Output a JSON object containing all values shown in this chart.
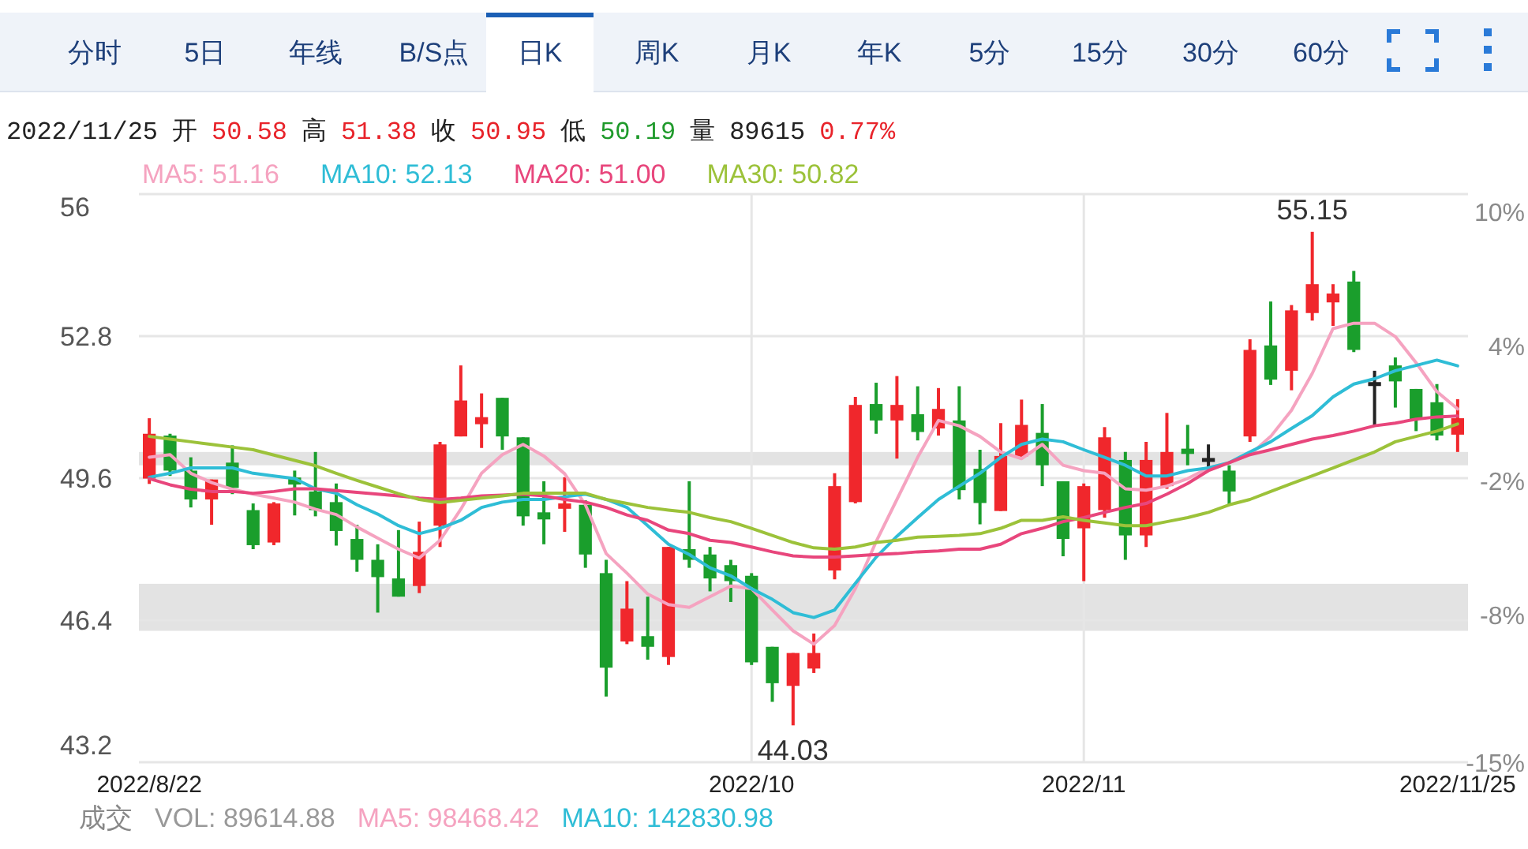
{
  "chart_data": {
    "type": "candlestick",
    "categories": [
      "2022/8/22",
      null,
      null,
      null,
      null,
      null,
      null,
      null,
      null,
      null,
      null,
      null,
      null,
      null,
      null,
      null,
      null,
      null,
      null,
      null,
      null,
      null,
      null,
      null,
      null,
      null,
      null,
      null,
      null,
      "2022/10",
      null,
      null,
      null,
      null,
      null,
      null,
      null,
      null,
      null,
      null,
      null,
      null,
      null,
      null,
      null,
      "2022/11",
      null,
      null,
      null,
      null,
      null,
      null,
      null,
      null,
      null,
      null,
      null,
      null,
      null,
      null,
      null,
      null,
      null,
      "2022/11/25"
    ],
    "ohlc": [
      [
        49.59,
        50.95,
        49.47,
        50.6
      ],
      [
        50.56,
        50.6,
        49.65,
        49.77
      ],
      [
        49.77,
        50.07,
        48.94,
        49.12
      ],
      [
        49.12,
        49.57,
        48.55,
        49.57
      ],
      [
        49.95,
        50.34,
        49.24,
        49.38
      ],
      [
        48.88,
        49.03,
        48.0,
        48.09
      ],
      [
        48.15,
        49.06,
        48.09,
        49.03
      ],
      [
        49.57,
        49.77,
        48.76,
        49.5
      ],
      [
        49.3,
        50.19,
        48.74,
        48.88
      ],
      [
        49.06,
        49.48,
        48.08,
        48.41
      ],
      [
        48.23,
        48.55,
        47.49,
        47.76
      ],
      [
        47.76,
        48.11,
        46.57,
        47.37
      ],
      [
        47.34,
        48.43,
        46.93,
        46.93
      ],
      [
        47.17,
        48.62,
        47.01,
        47.94
      ],
      [
        48.53,
        50.42,
        48.05,
        50.36
      ],
      [
        50.54,
        52.14,
        50.54,
        51.35
      ],
      [
        50.86,
        51.51,
        50.28,
        50.93
      ],
      [
        51.41,
        51.41,
        50.24,
        50.54
      ],
      [
        50.52,
        50.52,
        48.53,
        48.74
      ],
      [
        48.83,
        49.53,
        48.11,
        48.67
      ],
      [
        48.91,
        49.62,
        48.39,
        49.03
      ],
      [
        49.0,
        49.1,
        47.58,
        47.88
      ],
      [
        47.46,
        47.76,
        44.68,
        45.33
      ],
      [
        45.92,
        47.28,
        45.86,
        46.66
      ],
      [
        46.04,
        46.93,
        45.51,
        45.8
      ],
      [
        45.57,
        48.05,
        45.39,
        48.05
      ],
      [
        48.0,
        49.53,
        47.58,
        47.76
      ],
      [
        47.88,
        48.05,
        47.05,
        47.34
      ],
      [
        47.64,
        47.76,
        46.81,
        47.28
      ],
      [
        47.4,
        47.46,
        45.39,
        45.45
      ],
      [
        45.8,
        45.8,
        44.56,
        44.98
      ],
      [
        44.92,
        45.66,
        44.03,
        45.66
      ],
      [
        45.31,
        46.1,
        45.21,
        45.66
      ],
      [
        47.52,
        49.71,
        47.32,
        49.42
      ],
      [
        49.06,
        51.43,
        49.03,
        51.25
      ],
      [
        51.27,
        51.75,
        50.6,
        50.9
      ],
      [
        50.9,
        51.9,
        50.04,
        51.25
      ],
      [
        51.04,
        51.67,
        50.45,
        50.64
      ],
      [
        50.72,
        51.63,
        50.56,
        51.16
      ],
      [
        50.9,
        51.67,
        49.12,
        49.33
      ],
      [
        49.81,
        50.24,
        48.56,
        49.04
      ],
      [
        48.86,
        50.84,
        48.86,
        50.1
      ],
      [
        50.09,
        51.37,
        50.07,
        50.8
      ],
      [
        50.62,
        51.27,
        49.42,
        49.89
      ],
      [
        49.53,
        49.53,
        47.84,
        48.23
      ],
      [
        48.47,
        49.48,
        47.28,
        49.42
      ],
      [
        48.88,
        50.75,
        48.71,
        50.52
      ],
      [
        50.01,
        50.19,
        47.76,
        48.31
      ],
      [
        48.31,
        50.42,
        48.05,
        50.01
      ],
      [
        49.42,
        51.07,
        49.36,
        50.19
      ],
      [
        50.22,
        50.8,
        49.89,
        50.19
      ],
      [
        50.01,
        50.36,
        49.83,
        50.01
      ],
      [
        49.77,
        49.89,
        49.0,
        49.3
      ],
      [
        50.54,
        52.73,
        50.42,
        52.49
      ],
      [
        52.59,
        53.58,
        51.7,
        51.82
      ],
      [
        52.02,
        53.5,
        51.58,
        53.38
      ],
      [
        53.32,
        55.15,
        53.15,
        53.97
      ],
      [
        53.56,
        53.97,
        53.03,
        53.76
      ],
      [
        54.03,
        54.27,
        52.44,
        52.49
      ],
      [
        51.72,
        52.02,
        50.78,
        51.72
      ],
      [
        52.14,
        52.32,
        51.19,
        51.78
      ],
      [
        51.61,
        51.61,
        50.66,
        50.93
      ],
      [
        51.31,
        51.72,
        50.45,
        50.56
      ],
      [
        50.58,
        51.38,
        50.19,
        50.95
      ]
    ],
    "colors": [
      "#f0272c",
      "#1a9e2c",
      "#1a9e2c",
      "#f0272c",
      "#1a9e2c",
      "#1a9e2c",
      "#f0272c",
      "#1a9e2c",
      "#1a9e2c",
      "#1a9e2c",
      "#1a9e2c",
      "#1a9e2c",
      "#1a9e2c",
      "#f0272c",
      "#f0272c",
      "#f0272c",
      "#f0272c",
      "#1a9e2c",
      "#1a9e2c",
      "#1a9e2c",
      "#f0272c",
      "#1a9e2c",
      "#1a9e2c",
      "#f0272c",
      "#1a9e2c",
      "#f0272c",
      "#1a9e2c",
      "#1a9e2c",
      "#1a9e2c",
      "#1a9e2c",
      "#1a9e2c",
      "#f0272c",
      "#f0272c",
      "#f0272c",
      "#f0272c",
      "#1a9e2c",
      "#f0272c",
      "#1a9e2c",
      "#f0272c",
      "#1a9e2c",
      "#1a9e2c",
      "#f0272c",
      "#f0272c",
      "#1a9e2c",
      "#1a9e2c",
      "#f0272c",
      "#f0272c",
      "#1a9e2c",
      "#f0272c",
      "#f0272c",
      "#1a9e2c",
      "#222222",
      "#1a9e2c",
      "#f0272c",
      "#1a9e2c",
      "#f0272c",
      "#f0272c",
      "#f0272c",
      "#1a9e2c",
      "#222222",
      "#1a9e2c",
      "#1a9e2c",
      "#1a9e2c",
      "#f0272c"
    ],
    "series": [
      {
        "name": "MA5: 51.16",
        "type": "line",
        "color": "#f5a3c0",
        "values": [
          50.07,
          50.13,
          49.71,
          49.5,
          49.35,
          49.24,
          49.15,
          49.06,
          48.9,
          48.78,
          48.5,
          48.25,
          48.0,
          47.8,
          48.2,
          48.9,
          49.71,
          50.13,
          50.36,
          50.1,
          49.7,
          49.0,
          47.9,
          47.46,
          46.99,
          46.75,
          46.69,
          46.93,
          47.17,
          47.11,
          46.63,
          46.16,
          45.86,
          46.28,
          47.11,
          48.17,
          49.12,
          50.07,
          50.9,
          50.78,
          50.54,
          50.19,
          50.04,
          50.36,
          49.89,
          49.77,
          49.71,
          49.36,
          49.33,
          49.42,
          49.59,
          49.83,
          49.95,
          50.13,
          50.54,
          51.13,
          51.96,
          52.97,
          53.09,
          53.09,
          52.79,
          52.2,
          51.55,
          51.16
        ]
      },
      {
        "name": "MA10: 52.13",
        "type": "line",
        "color": "#2fbdd6",
        "values": [
          49.62,
          49.71,
          49.83,
          49.83,
          49.83,
          49.71,
          49.65,
          49.59,
          49.36,
          49.26,
          49.0,
          48.79,
          48.53,
          48.35,
          48.47,
          48.65,
          48.94,
          49.06,
          49.12,
          49.12,
          49.18,
          49.24,
          49.12,
          48.94,
          48.53,
          48.11,
          47.88,
          47.58,
          47.4,
          47.11,
          46.87,
          46.57,
          46.46,
          46.63,
          47.23,
          47.82,
          48.29,
          48.71,
          49.12,
          49.42,
          49.71,
          50.07,
          50.36,
          50.48,
          50.42,
          50.24,
          50.07,
          49.89,
          49.65,
          49.65,
          49.77,
          49.83,
          49.95,
          50.19,
          50.42,
          50.72,
          51.01,
          51.43,
          51.72,
          51.84,
          52.02,
          52.14,
          52.26,
          52.13
        ]
      },
      {
        "name": "MA20: 51.00",
        "type": "line",
        "color": "#e8467c",
        "values": [
          49.59,
          49.45,
          49.35,
          49.3,
          49.3,
          49.26,
          49.3,
          49.36,
          49.36,
          49.32,
          49.28,
          49.24,
          49.2,
          49.15,
          49.12,
          49.15,
          49.2,
          49.22,
          49.24,
          49.2,
          49.12,
          49.06,
          48.94,
          48.77,
          48.65,
          48.43,
          48.35,
          48.2,
          48.15,
          48.05,
          47.94,
          47.85,
          47.82,
          47.82,
          47.85,
          47.88,
          47.9,
          47.94,
          47.96,
          48.0,
          48.0,
          48.11,
          48.35,
          48.47,
          48.62,
          48.71,
          48.83,
          48.94,
          49.03,
          49.24,
          49.48,
          49.77,
          49.95,
          50.13,
          50.24,
          50.36,
          50.48,
          50.56,
          50.66,
          50.78,
          50.84,
          50.93,
          50.98,
          51.0
        ]
      },
      {
        "name": "MA30: 50.82",
        "type": "line",
        "color": "#9cc23a",
        "values": [
          50.54,
          50.48,
          50.42,
          50.36,
          50.3,
          50.24,
          50.12,
          50.0,
          49.88,
          49.71,
          49.55,
          49.4,
          49.25,
          49.12,
          49.05,
          49.1,
          49.15,
          49.2,
          49.26,
          49.26,
          49.26,
          49.26,
          49.12,
          49.03,
          48.94,
          48.88,
          48.83,
          48.71,
          48.62,
          48.47,
          48.31,
          48.15,
          48.03,
          48.0,
          48.05,
          48.15,
          48.2,
          48.27,
          48.29,
          48.31,
          48.35,
          48.47,
          48.65,
          48.65,
          48.73,
          48.65,
          48.59,
          48.53,
          48.53,
          48.62,
          48.71,
          48.83,
          49.0,
          49.12,
          49.3,
          49.48,
          49.65,
          49.83,
          50.01,
          50.19,
          50.42,
          50.54,
          50.66,
          50.82
        ]
      }
    ],
    "ylim": [
      43.2,
      56
    ],
    "yticks": [
      56,
      52.8,
      49.6,
      46.4,
      43.2
    ],
    "y2lim": [
      -14.56,
      10.76
    ],
    "y2ticks": [
      {
        "value": 10,
        "label": "10%"
      },
      {
        "value": 4,
        "label": "4%"
      },
      {
        "value": -2,
        "label": "-2%"
      },
      {
        "value": -8,
        "label": "-8%"
      },
      {
        "value": -14.56,
        "label": "-15%"
      }
    ],
    "grid": true,
    "legend": "top left",
    "bands": [
      {
        "axis": "y",
        "from": 46.16,
        "to": 47.22,
        "color": "#e3e3e3"
      },
      {
        "axis": "y",
        "from": 49.89,
        "to": 50.19,
        "color": "#e3e3e3"
      }
    ],
    "annotations": [
      "分时",
      "5日",
      "年线",
      "B/S点",
      "日K",
      "周K",
      "月K",
      "年K",
      "5分",
      "15分",
      "30分",
      "60分",
      "2022/11/25",
      "开",
      "50.58",
      "高",
      "51.38",
      "收",
      "50.95",
      "低",
      "50.19",
      "量",
      "89615",
      "0.77%",
      "成交",
      "VOL: 89614.88",
      "MA5: 98468.42",
      "MA10: 142830.98",
      {
        "text": "55.15",
        "y": 55.15
      },
      {
        "text": "44.03",
        "y": 44.03
      }
    ]
  }
}
